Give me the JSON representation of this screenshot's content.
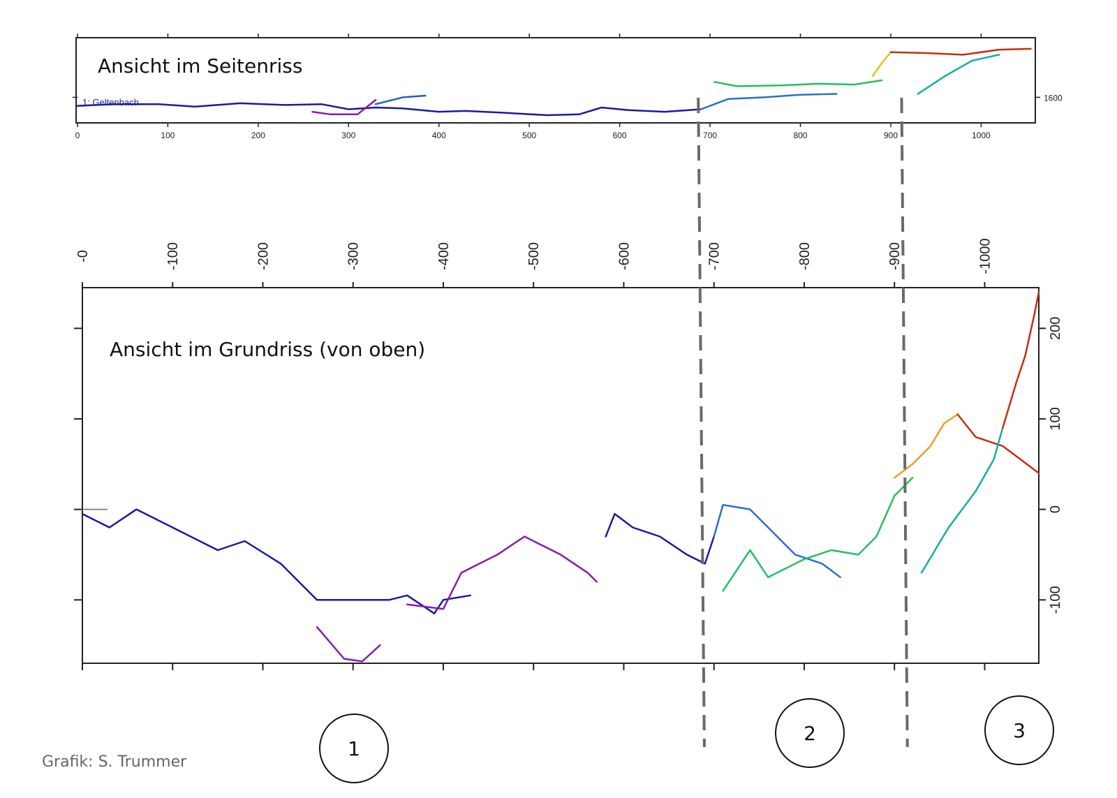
{
  "chart_data": [
    {
      "type": "line",
      "title": "Ansicht im Seitenriss",
      "xlabel": "",
      "ylabel": "",
      "xlim": [
        0,
        1060
      ],
      "ylim": [
        1570,
        1670
      ],
      "x_ticks": [
        0,
        100,
        200,
        300,
        400,
        500,
        600,
        700,
        800,
        900,
        1000
      ],
      "y_ticks": [
        1600
      ],
      "grid": false,
      "series": [
        {
          "name": "1: Geltenbach",
          "color": "#1a1aa0",
          "points": [
            [
              0,
              1590
            ],
            [
              40,
              1592
            ],
            [
              90,
              1592
            ],
            [
              130,
              1589
            ],
            [
              180,
              1593
            ],
            [
              230,
              1591
            ],
            [
              270,
              1592
            ],
            [
              300,
              1586
            ],
            [
              330,
              1588
            ],
            [
              360,
              1587
            ],
            [
              400,
              1583
            ],
            [
              430,
              1584
            ],
            [
              470,
              1582
            ],
            [
              520,
              1579
            ],
            [
              555,
              1580
            ],
            [
              580,
              1588
            ],
            [
              610,
              1585
            ],
            [
              650,
              1583
            ],
            [
              690,
              1586
            ]
          ]
        },
        {
          "name": "",
          "color": "#8a1ab0",
          "points": [
            [
              260,
              1583
            ],
            [
              280,
              1580
            ],
            [
              310,
              1580
            ],
            [
              330,
              1597
            ]
          ]
        },
        {
          "name": "",
          "color": "#2060c0",
          "points": [
            [
              330,
              1592
            ],
            [
              360,
              1600
            ],
            [
              385,
              1602
            ]
          ]
        },
        {
          "name": "",
          "color": "#2a6fd0",
          "points": [
            [
              690,
              1586
            ],
            [
              720,
              1598
            ],
            [
              760,
              1600
            ],
            [
              800,
              1603
            ],
            [
              840,
              1604
            ]
          ]
        },
        {
          "name": "",
          "color": "#20c060",
          "points": [
            [
              705,
              1618
            ],
            [
              730,
              1613
            ],
            [
              780,
              1614
            ],
            [
              820,
              1616
            ],
            [
              860,
              1615
            ],
            [
              890,
              1620
            ]
          ]
        },
        {
          "name": "",
          "color": "#e8c020",
          "points": [
            [
              880,
              1625
            ],
            [
              890,
              1640
            ],
            [
              900,
              1653
            ]
          ]
        },
        {
          "name": "",
          "color": "#c03010",
          "points": [
            [
              900,
              1653
            ],
            [
              940,
              1652
            ],
            [
              980,
              1650
            ],
            [
              1020,
              1656
            ],
            [
              1055,
              1657
            ]
          ]
        },
        {
          "name": "",
          "color": "#10b0a0",
          "points": [
            [
              930,
              1604
            ],
            [
              960,
              1625
            ],
            [
              990,
              1643
            ],
            [
              1020,
              1650
            ]
          ]
        }
      ]
    },
    {
      "type": "line",
      "title": "Ansicht im Grundriss (von oben)",
      "xlabel": "",
      "ylabel": "",
      "xlim": [
        0,
        1060
      ],
      "ylim": [
        -170,
        245
      ],
      "x_ticks": [
        0,
        100,
        200,
        300,
        400,
        500,
        600,
        700,
        800,
        900,
        1000
      ],
      "x_tick_labels": [
        "-0",
        "-100",
        "-200",
        "-300",
        "-400",
        "-500",
        "-600",
        "-700",
        "-800",
        "-900",
        "-1000"
      ],
      "y_ticks": [
        -100,
        0,
        100,
        200
      ],
      "y_tick_labels": [
        "-100",
        "0",
        "100",
        "200"
      ],
      "grid": false,
      "series": [
        {
          "name": "",
          "color": "#1a1aa0",
          "points": [
            [
              0,
              -5
            ],
            [
              30,
              -20
            ],
            [
              60,
              0
            ],
            [
              100,
              -20
            ],
            [
              150,
              -45
            ],
            [
              180,
              -35
            ],
            [
              220,
              -60
            ],
            [
              260,
              -100
            ],
            [
              300,
              -100
            ],
            [
              340,
              -100
            ],
            [
              360,
              -95
            ],
            [
              390,
              -115
            ],
            [
              400,
              -100
            ],
            [
              430,
              -95
            ]
          ]
        },
        {
          "name": "",
          "color": "#8a1ab0",
          "points": [
            [
              260,
              -130
            ],
            [
              290,
              -165
            ],
            [
              310,
              -168
            ],
            [
              330,
              -150
            ]
          ]
        },
        {
          "name": "",
          "color": "#8a1ab0",
          "points": [
            [
              360,
              -105
            ],
            [
              400,
              -110
            ],
            [
              420,
              -70
            ],
            [
              460,
              -50
            ],
            [
              490,
              -30
            ],
            [
              530,
              -50
            ],
            [
              560,
              -70
            ],
            [
              570,
              -80
            ]
          ]
        },
        {
          "name": "",
          "color": "#1a1aa0",
          "points": [
            [
              580,
              -30
            ],
            [
              590,
              -5
            ],
            [
              610,
              -20
            ],
            [
              640,
              -30
            ],
            [
              670,
              -50
            ],
            [
              690,
              -60
            ],
            [
              700,
              -30
            ]
          ]
        },
        {
          "name": "",
          "color": "#2a6fd0",
          "points": [
            [
              700,
              -30
            ],
            [
              710,
              5
            ],
            [
              740,
              0
            ],
            [
              760,
              -20
            ],
            [
              790,
              -50
            ],
            [
              820,
              -60
            ],
            [
              840,
              -75
            ]
          ]
        },
        {
          "name": "",
          "color": "#20c060",
          "points": [
            [
              710,
              -90
            ],
            [
              740,
              -45
            ],
            [
              760,
              -75
            ],
            [
              800,
              -55
            ],
            [
              830,
              -45
            ],
            [
              860,
              -50
            ],
            [
              880,
              -30
            ],
            [
              900,
              15
            ],
            [
              920,
              35
            ]
          ]
        },
        {
          "name": "",
          "color": "#e8a020",
          "points": [
            [
              900,
              35
            ],
            [
              920,
              50
            ],
            [
              940,
              70
            ],
            [
              955,
              95
            ],
            [
              970,
              105
            ]
          ]
        },
        {
          "name": "",
          "color": "#c03010",
          "points": [
            [
              970,
              105
            ],
            [
              990,
              80
            ],
            [
              1020,
              70
            ],
            [
              1040,
              55
            ],
            [
              1060,
              40
            ]
          ]
        },
        {
          "name": "",
          "color": "#10b0a0",
          "points": [
            [
              930,
              -70
            ],
            [
              960,
              -20
            ],
            [
              990,
              20
            ],
            [
              1010,
              55
            ],
            [
              1020,
              90
            ]
          ]
        },
        {
          "name": "",
          "color": "#c03010",
          "points": [
            [
              1020,
              90
            ],
            [
              1035,
              140
            ],
            [
              1045,
              170
            ],
            [
              1055,
              215
            ],
            [
              1060,
              240
            ]
          ]
        }
      ]
    }
  ],
  "separators": {
    "x_values": [
      687,
      912
    ],
    "color": "#6a6a6a"
  },
  "sections": [
    "1",
    "2",
    "3"
  ],
  "credit": "Grafik: S. Trummer"
}
